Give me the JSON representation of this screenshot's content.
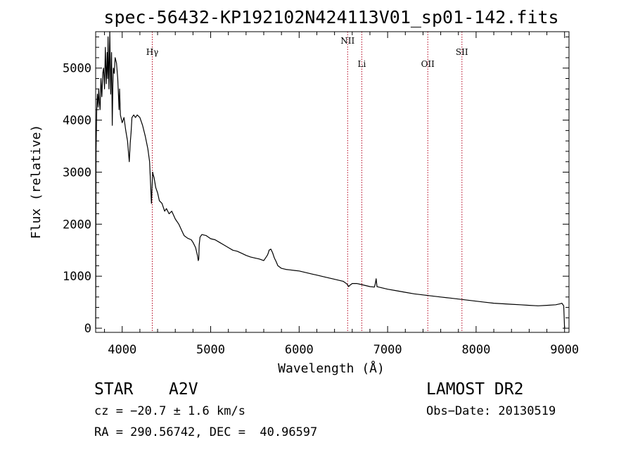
{
  "chart_data": {
    "type": "line",
    "title": "spec-56432-KP192102N424113V01_sp01-142.fits",
    "xlabel": "Wavelength (Å)",
    "ylabel": "Flux (relative)",
    "xlim": [
      3700,
      9050
    ],
    "ylim": [
      -80,
      5700
    ],
    "xticks": [
      4000,
      5000,
      6000,
      7000,
      8000,
      9000
    ],
    "yticks": [
      0,
      1000,
      2000,
      3000,
      4000,
      5000
    ],
    "grid": false,
    "series": [
      {
        "x": [
          3700,
          3705,
          3712,
          3720,
          3728,
          3735,
          3742,
          3750,
          3760,
          3770,
          3780,
          3790,
          3800,
          3810,
          3820,
          3830,
          3835,
          3840,
          3850,
          3860,
          3870,
          3880,
          3888,
          3895,
          3900,
          3910,
          3920,
          3935,
          3950,
          3965,
          3970,
          3980,
          4000,
          4020,
          4040,
          4060,
          4080,
          4090,
          4100,
          4110,
          4130,
          4150,
          4170,
          4200,
          4230,
          4260,
          4290,
          4310,
          4320,
          4330,
          4340,
          4345,
          4350,
          4360,
          4380,
          4400,
          4420,
          4450,
          4480,
          4500,
          4530,
          4560,
          4600,
          4640,
          4680,
          4700,
          4740,
          4780,
          4800,
          4830,
          4850,
          4860,
          4865,
          4870,
          4880,
          4900,
          4950,
          5000,
          5050,
          5100,
          5150,
          5200,
          5250,
          5300,
          5350,
          5400,
          5450,
          5500,
          5550,
          5600,
          5620,
          5640,
          5650,
          5660,
          5680,
          5700,
          5720,
          5740,
          5760,
          5800,
          5850,
          5900,
          5950,
          6000,
          6050,
          6100,
          6150,
          6200,
          6300,
          6400,
          6500,
          6540,
          6560,
          6570,
          6600,
          6650,
          6700,
          6750,
          6800,
          6850,
          6860,
          6870,
          6880,
          6900,
          6950,
          7000,
          7100,
          7200,
          7300,
          7400,
          7500,
          7600,
          7700,
          7800,
          7900,
          8000,
          8100,
          8200,
          8300,
          8400,
          8500,
          8600,
          8700,
          8800,
          8900,
          8950,
          8970,
          8990,
          9000
        ],
        "y": [
          0,
          3400,
          4200,
          4500,
          4250,
          4600,
          4350,
          4200,
          4800,
          4450,
          4900,
          5000,
          4600,
          5400,
          4700,
          5300,
          4800,
          5600,
          4600,
          5700,
          4500,
          5300,
          3900,
          4700,
          5000,
          4900,
          5200,
          5100,
          4800,
          4200,
          4600,
          4100,
          3950,
          4050,
          3800,
          3600,
          3200,
          3550,
          3750,
          4050,
          4100,
          4050,
          4100,
          4050,
          3900,
          3700,
          3450,
          3200,
          2800,
          2400,
          2800,
          3000,
          2950,
          2900,
          2700,
          2600,
          2450,
          2400,
          2250,
          2300,
          2200,
          2250,
          2100,
          2000,
          1850,
          1780,
          1730,
          1700,
          1650,
          1550,
          1400,
          1300,
          1330,
          1600,
          1750,
          1800,
          1780,
          1720,
          1700,
          1650,
          1600,
          1550,
          1500,
          1480,
          1440,
          1400,
          1370,
          1350,
          1330,
          1300,
          1350,
          1400,
          1440,
          1500,
          1520,
          1450,
          1350,
          1280,
          1200,
          1150,
          1130,
          1120,
          1110,
          1100,
          1080,
          1060,
          1040,
          1020,
          980,
          940,
          900,
          850,
          800,
          820,
          860,
          860,
          840,
          820,
          800,
          790,
          850,
          950,
          800,
          790,
          770,
          750,
          720,
          690,
          660,
          640,
          620,
          600,
          580,
          560,
          540,
          520,
          500,
          480,
          470,
          460,
          450,
          440,
          430,
          440,
          450,
          470,
          480,
          430,
          0
        ]
      }
    ],
    "annotations": [
      {
        "label": "Hγ",
        "x": 4340
      },
      {
        "label": "NII",
        "x": 6548
      },
      {
        "label": "Li",
        "x": 6708
      },
      {
        "label": "OII",
        "x": 7454
      },
      {
        "label": "SII",
        "x": 7840
      }
    ],
    "annotation_color": "#b3001b",
    "line_color": "#000000"
  },
  "info": {
    "class_label": "STAR",
    "subclass": "A2V",
    "cz": "cz = −20.7 ± 1.6 km/s",
    "coords": "RA = 290.56742, DEC =  40.96597",
    "survey": "LAMOST DR2",
    "obs_date": "Obs−Date: 20130519"
  }
}
